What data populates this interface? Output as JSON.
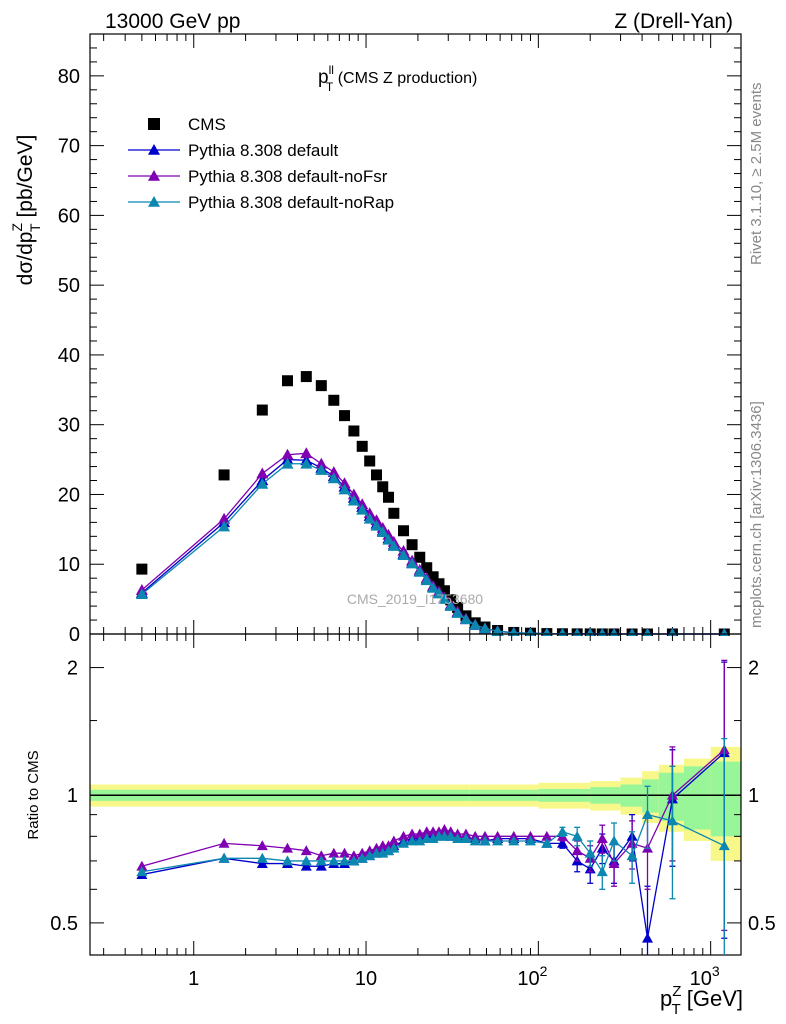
{
  "header": {
    "left": "13000 GeV pp",
    "right": "Z (Drell-Yan)"
  },
  "side_labels": {
    "rivet": "Rivet 3.1.10, ≥ 2.5M events",
    "mcplots": "mcplots.cern.ch [arXiv:1306.3436]"
  },
  "plot_title": {
    "main": "p",
    "sup": "ll",
    "sub": "T",
    "rest": " (CMS Z production)"
  },
  "watermark": "CMS_2019_I1753680",
  "colors": {
    "cms": "#000000",
    "default": "#0000cc",
    "noFsr": "#7f00b2",
    "noRap": "#0b87b0",
    "band_inner": "#98f598",
    "band_outer": "#f8f88a"
  },
  "chart_data": {
    "type": "line",
    "x_scale": "log",
    "xlim": [
      0.25,
      1500
    ],
    "x_ticks": [
      "1",
      "10",
      "10^2",
      "10^3"
    ],
    "xlabel": "p_T^Z [GeV]",
    "x": [
      0.5,
      1.5,
      2.5,
      3.5,
      4.5,
      5.5,
      6.5,
      7.5,
      8.5,
      9.5,
      10.5,
      11.5,
      12.5,
      13.5,
      14.5,
      16.5,
      18.5,
      20.5,
      22.5,
      24.5,
      26.5,
      28.5,
      31,
      34,
      38,
      43,
      49,
      58,
      72,
      90,
      112,
      138,
      168,
      200,
      235,
      275,
      350,
      430,
      600,
      1200
    ],
    "main_panel": {
      "ylabel": "dσ/dp_T^Z [pb/GeV]",
      "ylim": [
        0,
        86
      ],
      "y_ticks": [
        "0",
        "10",
        "20",
        "30",
        "40",
        "50",
        "60",
        "70",
        "80"
      ],
      "legend_position": "top-left",
      "series": [
        {
          "name": "CMS",
          "key": "cms",
          "marker": "square",
          "values": [
            9.3,
            22.8,
            32.1,
            36.3,
            36.9,
            35.6,
            33.5,
            31.3,
            29.1,
            26.9,
            24.8,
            22.8,
            21.1,
            19.6,
            17.3,
            14.8,
            12.8,
            11.0,
            9.5,
            8.2,
            7.2,
            6.2,
            4.9,
            3.8,
            2.6,
            1.6,
            1.0,
            0.5,
            0.22,
            0.12,
            0.06,
            0.03,
            0.018,
            0.011,
            0.007,
            0.004,
            0.002,
            0.001,
            0.0005,
            0.0001
          ]
        },
        {
          "name": "Pythia 8.308 default",
          "key": "default",
          "marker": "triangle",
          "values": [
            5.9,
            16.0,
            22.0,
            25.0,
            24.9,
            23.8,
            22.6,
            21.1,
            19.5,
            18.2,
            16.9,
            15.8,
            14.8,
            13.7,
            12.8,
            11.5,
            10.2,
            9.0,
            7.8,
            6.7,
            5.9,
            5.1,
            4.1,
            3.1,
            2.1,
            1.3,
            0.8,
            0.4,
            0.18,
            0.1,
            0.05,
            0.025,
            0.015,
            0.009,
            0.006,
            0.003,
            0.002,
            0.001,
            0.0005,
            0.0001
          ]
        },
        {
          "name": "Pythia 8.308 default-noFsr",
          "key": "noFsr",
          "marker": "triangle",
          "values": [
            6.3,
            16.5,
            23.0,
            25.7,
            25.9,
            24.4,
            23.2,
            21.6,
            20.0,
            18.6,
            17.3,
            16.3,
            15.2,
            14.2,
            13.2,
            11.9,
            10.5,
            9.2,
            8.0,
            6.9,
            6.1,
            5.2,
            4.2,
            3.2,
            2.2,
            1.3,
            0.8,
            0.4,
            0.18,
            0.1,
            0.05,
            0.025,
            0.015,
            0.009,
            0.006,
            0.003,
            0.002,
            0.001,
            0.0005,
            0.0001
          ]
        },
        {
          "name": "Pythia 8.308 default-noRap",
          "key": "noRap",
          "marker": "triangle",
          "values": [
            5.7,
            15.4,
            21.5,
            24.4,
            24.4,
            23.5,
            22.3,
            20.7,
            19.1,
            17.8,
            16.5,
            15.5,
            14.6,
            13.5,
            12.6,
            11.3,
            10.1,
            8.9,
            7.7,
            6.6,
            5.8,
            5.0,
            4.0,
            3.0,
            2.1,
            1.3,
            0.8,
            0.4,
            0.17,
            0.1,
            0.05,
            0.025,
            0.015,
            0.009,
            0.006,
            0.003,
            0.002,
            0.001,
            0.0005,
            0.0001
          ]
        }
      ]
    },
    "ratio_panel": {
      "ylabel": "Ratio to CMS",
      "y_scale": "log",
      "ylim": [
        0.42,
        2.4
      ],
      "y_ticks": [
        "0.5",
        "1",
        "2"
      ],
      "reference": 1,
      "band": {
        "x_edges": [
          0.25,
          10,
          40,
          100,
          200,
          300,
          400,
          500,
          700,
          1000,
          1500
        ],
        "inner": [
          0.03,
          0.03,
          0.03,
          0.035,
          0.045,
          0.06,
          0.09,
          0.13,
          0.17,
          0.2
        ],
        "outer": [
          0.06,
          0.06,
          0.06,
          0.07,
          0.08,
          0.1,
          0.14,
          0.18,
          0.22,
          0.3
        ]
      },
      "series": [
        {
          "name": "Pythia 8.308 default",
          "key": "default",
          "values": [
            0.65,
            0.71,
            0.69,
            0.69,
            0.68,
            0.68,
            0.69,
            0.69,
            0.7,
            0.71,
            0.72,
            0.73,
            0.74,
            0.74,
            0.76,
            0.78,
            0.79,
            0.79,
            0.8,
            0.8,
            0.81,
            0.81,
            0.8,
            0.8,
            0.79,
            0.79,
            0.78,
            0.79,
            0.79,
            0.79,
            0.77,
            0.77,
            0.7,
            0.67,
            0.75,
            0.7,
            0.8,
            0.46,
            0.98,
            1.26
          ],
          "errors": [
            0,
            0,
            0,
            0,
            0,
            0,
            0,
            0,
            0,
            0,
            0,
            0,
            0,
            0,
            0,
            0,
            0,
            0,
            0,
            0,
            0,
            0,
            0,
            0,
            0,
            0,
            0,
            0,
            0,
            0,
            0,
            0.02,
            0.04,
            0.05,
            0.06,
            0.08,
            0.1,
            0.15,
            0.3,
            0.8
          ]
        },
        {
          "name": "Pythia 8.308 default-noFsr",
          "key": "noFsr",
          "values": [
            0.68,
            0.77,
            0.76,
            0.75,
            0.74,
            0.72,
            0.73,
            0.73,
            0.72,
            0.73,
            0.74,
            0.75,
            0.76,
            0.76,
            0.78,
            0.8,
            0.81,
            0.81,
            0.82,
            0.82,
            0.82,
            0.83,
            0.82,
            0.81,
            0.81,
            0.8,
            0.8,
            0.8,
            0.8,
            0.8,
            0.8,
            0.8,
            0.74,
            0.71,
            0.79,
            0.69,
            0.77,
            0.75,
            1.0,
            1.28
          ],
          "errors": [
            0,
            0,
            0,
            0,
            0,
            0,
            0,
            0,
            0,
            0,
            0,
            0,
            0,
            0,
            0,
            0,
            0,
            0,
            0,
            0,
            0,
            0,
            0,
            0,
            0,
            0,
            0,
            0,
            0,
            0,
            0,
            0.02,
            0.04,
            0.05,
            0.06,
            0.08,
            0.1,
            0.15,
            0.3,
            0.8
          ]
        },
        {
          "name": "Pythia 8.308 default-noRap",
          "key": "noRap",
          "values": [
            0.66,
            0.71,
            0.71,
            0.7,
            0.7,
            0.7,
            0.7,
            0.7,
            0.7,
            0.71,
            0.72,
            0.73,
            0.73,
            0.74,
            0.75,
            0.77,
            0.78,
            0.78,
            0.79,
            0.79,
            0.8,
            0.8,
            0.8,
            0.79,
            0.79,
            0.78,
            0.78,
            0.78,
            0.78,
            0.78,
            0.77,
            0.82,
            0.8,
            0.73,
            0.66,
            0.78,
            0.72,
            0.9,
            0.87,
            0.76
          ],
          "errors": [
            0,
            0,
            0,
            0,
            0,
            0,
            0,
            0,
            0,
            0,
            0,
            0,
            0,
            0,
            0,
            0,
            0,
            0,
            0,
            0,
            0,
            0,
            0,
            0,
            0,
            0,
            0,
            0,
            0,
            0,
            0,
            0.02,
            0.04,
            0.05,
            0.06,
            0.08,
            0.1,
            0.15,
            0.3,
            0.6
          ]
        }
      ]
    }
  }
}
